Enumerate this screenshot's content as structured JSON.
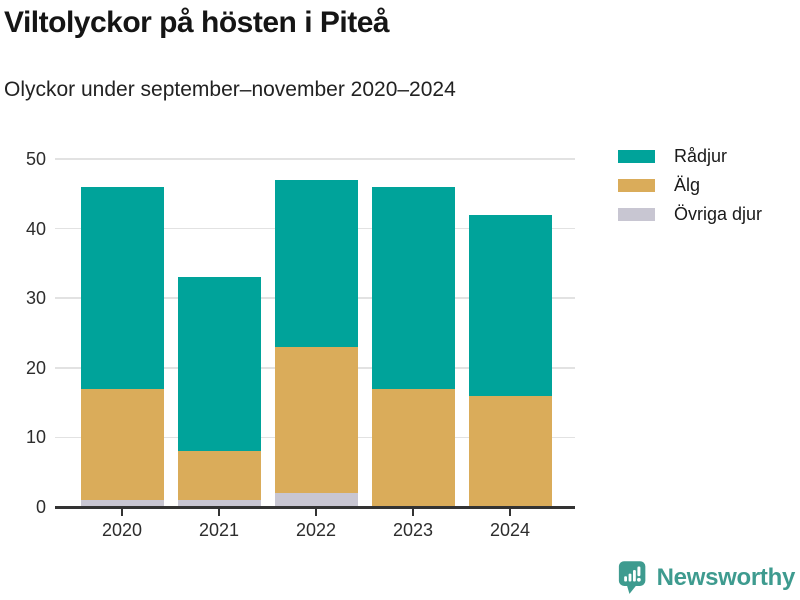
{
  "header": {
    "title": "Viltolyckor på hösten i Piteå",
    "subtitle": "Olyckor under september–november 2020–2024"
  },
  "chart_data": {
    "type": "bar",
    "stacked": true,
    "title": "Viltolyckor på hösten i Piteå",
    "subtitle": "Olyckor under september–november 2020–2024",
    "categories": [
      "2020",
      "2021",
      "2022",
      "2023",
      "2024"
    ],
    "series": [
      {
        "name": "Rådjur",
        "color": "#00A39A",
        "values": [
          29,
          25,
          24,
          29,
          26
        ]
      },
      {
        "name": "Älg",
        "color": "#DAAC5A",
        "values": [
          16,
          7,
          21,
          17,
          16
        ]
      },
      {
        "name": "Övriga djur",
        "color": "#C8C6D2",
        "values": [
          1,
          1,
          2,
          0,
          0
        ]
      }
    ],
    "stack_order_bottom_to_top": [
      "Övriga djur",
      "Älg",
      "Rådjur"
    ],
    "totals": [
      46,
      33,
      47,
      46,
      42
    ],
    "xlabel": "",
    "ylabel": "",
    "ylim": [
      0,
      50
    ],
    "yticks": [
      0,
      10,
      20,
      30,
      40,
      50
    ],
    "grid": true,
    "legend_position": "right"
  },
  "branding": {
    "logo_text": "Newsworthy",
    "logo_color": "#3E9B8F",
    "logo_icon": "bar-chart-speech-bubble-icon"
  },
  "colors": {
    "background": "#ffffff",
    "gridline": "#e2e2e2",
    "axis": "#333333",
    "title_text": "#151515",
    "tick_text": "#2d2d2d"
  }
}
